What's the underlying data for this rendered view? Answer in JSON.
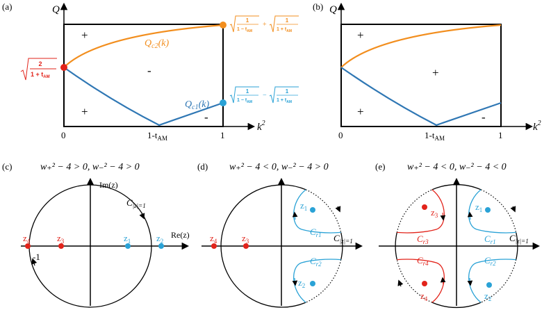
{
  "panels": {
    "a": {
      "label": "(a)",
      "y_axis": "Q",
      "x_axis": "k",
      "x_axis_sup": "2",
      "tick_0": "0",
      "tick_1": "1",
      "tick_mid": "1-t",
      "tick_mid_sub": "AM",
      "sign_upper_left": "+",
      "sign_middle": "-",
      "sign_lower_left": "+",
      "sign_lower_right": "-",
      "qc2_label": "Q",
      "qc2_sub": "c2",
      "qc2_arg": "(k)",
      "qc1_label": "Q",
      "qc1_sub": "c1",
      "qc1_arg": "(k)",
      "left_point_num": "2",
      "left_point_den": "1 + t",
      "left_point_den_sub": "AM",
      "top_right_term1": "1 − t",
      "top_right_op": "+",
      "top_right_term2": "1 + t",
      "bottom_right_term1": "1 − t",
      "bottom_right_op": "−",
      "bottom_right_term2": "1 + t",
      "frac_num": "1",
      "term_sub": "AM"
    },
    "b": {
      "label": "(b)",
      "y_axis": "Q",
      "x_axis": "k",
      "x_axis_sup": "2",
      "tick_0": "0",
      "tick_1": "1",
      "tick_mid": "1-t",
      "tick_mid_sub": "AM",
      "sign_upper_left": "+",
      "sign_middle": "+",
      "sign_lower_left": "+",
      "sign_lower_right": "-"
    },
    "c": {
      "label": "(c)",
      "condition": "w₊² − 4 > 0, w₋² − 4 > 0",
      "im_label": "Im(z)",
      "re_label": "Re(z)",
      "contour": "C",
      "contour_sub": "|z|=1",
      "minus_one": "-1",
      "z1": "z",
      "z1_sub": "1",
      "z2": "z",
      "z2_sub": "2",
      "z3": "z",
      "z3_sub": "3",
      "z4": "z",
      "z4_sub": "4"
    },
    "d": {
      "label": "(d)",
      "condition": "w₊² − 4 < 0, w₋² − 4 > 0",
      "contour": "C",
      "contour_sub": "|z|=1",
      "cr1": "C",
      "cr1_sub": "r1",
      "cr2": "C",
      "cr2_sub": "r2",
      "z1": "z",
      "z1_sub": "1",
      "z2": "z",
      "z2_sub": "2",
      "z3": "z",
      "z3_sub": "3",
      "z4": "z",
      "z4_sub": "4"
    },
    "e": {
      "label": "(e)",
      "condition": "w₊² − 4 < 0, w₋² − 4 < 0",
      "contour": "C",
      "contour_sub": "|z|=1",
      "cr1": "C",
      "cr1_sub": "r1",
      "cr2": "C",
      "cr2_sub": "r2",
      "cr3": "C",
      "cr3_sub": "r3",
      "cr4": "C",
      "cr4_sub": "r4",
      "z1": "z",
      "z1_sub": "1",
      "z2": "z",
      "z2_sub": "2",
      "z3": "z",
      "z3_sub": "3",
      "z4": "z",
      "z4_sub": "4"
    }
  },
  "colors": {
    "orange": "#f28e1e",
    "blue": "#2f77b4",
    "red": "#e2231a",
    "cyan": "#2aa2d6"
  }
}
